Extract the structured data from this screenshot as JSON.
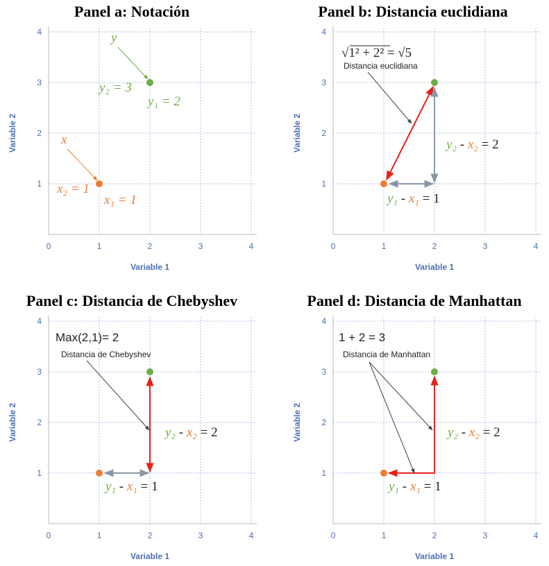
{
  "chart_data": [
    {
      "type": "scatter",
      "title": "Panel a: Notación",
      "xlabel": "Variable 1",
      "ylabel": "Variable 2",
      "xlim": [
        0,
        4
      ],
      "ylim": [
        0,
        4
      ],
      "xticks": [
        0,
        1,
        2,
        3,
        4
      ],
      "yticks": [
        1,
        2,
        3,
        4
      ],
      "grid": true,
      "series": [
        {
          "color": "#ed7d31",
          "x": [
            1
          ],
          "values": [
            1
          ]
        },
        {
          "color": "#70ad47",
          "x": [
            2
          ],
          "values": [
            3
          ]
        }
      ],
      "annotations": [
        {
          "parts": [
            {
              "text": "y",
              "color": "#70ad47"
            }
          ]
        },
        {
          "parts": [
            {
              "text": "y₂ = 3",
              "color": "#70ad47"
            }
          ]
        },
        {
          "parts": [
            {
              "text": "y₁ = 2",
              "color": "#70ad47"
            }
          ]
        },
        {
          "parts": [
            {
              "text": "x",
              "color": "#ed7d31"
            }
          ]
        },
        {
          "parts": [
            {
              "text": "x₂ = 1",
              "color": "#ed7d31"
            }
          ]
        },
        {
          "parts": [
            {
              "text": "x₁ = 1",
              "color": "#ed7d31"
            }
          ]
        }
      ]
    },
    {
      "type": "scatter",
      "title": "Panel b: Distancia euclidiana",
      "xlabel": "Variable 1",
      "ylabel": "Variable 2",
      "xlim": [
        0,
        4
      ],
      "ylim": [
        0,
        4
      ],
      "xticks": [
        0,
        1,
        2,
        3,
        4
      ],
      "yticks": [
        1,
        2,
        3,
        4
      ],
      "grid": true,
      "distance": "euclidean",
      "series": [
        {
          "color": "#ed7d31",
          "x": [
            1
          ],
          "values": [
            1
          ]
        },
        {
          "color": "#70ad47",
          "x": [
            2
          ],
          "values": [
            3
          ]
        }
      ],
      "annotations": [
        {
          "parts": [
            {
              "text": "√1² + 2² = √5",
              "color": "#222222"
            }
          ]
        },
        {
          "parts": [
            {
              "text": "Distancia euclidiana",
              "color": "#222222"
            }
          ]
        },
        {
          "parts": [
            {
              "text": "y₂",
              "color": "#70ad47"
            },
            {
              "text": " - ",
              "color": "#222222"
            },
            {
              "text": "x₂",
              "color": "#ed7d31"
            },
            {
              "text": " = 2",
              "color": "#222222"
            }
          ]
        },
        {
          "parts": [
            {
              "text": "y₁",
              "color": "#70ad47"
            },
            {
              "text": " - ",
              "color": "#222222"
            },
            {
              "text": "x₁",
              "color": "#ed7d31"
            },
            {
              "text": " = 1",
              "color": "#222222"
            }
          ]
        }
      ]
    },
    {
      "type": "scatter",
      "title": "Panel c: Distancia de Chebyshev",
      "xlabel": "Variable 1",
      "ylabel": "Variable 2",
      "xlim": [
        0,
        4
      ],
      "ylim": [
        0,
        4
      ],
      "xticks": [
        0,
        1,
        2,
        3,
        4
      ],
      "yticks": [
        1,
        2,
        3,
        4
      ],
      "grid": true,
      "distance": "chebyshev",
      "series": [
        {
          "color": "#ed7d31",
          "x": [
            1
          ],
          "values": [
            1
          ]
        },
        {
          "color": "#70ad47",
          "x": [
            2
          ],
          "values": [
            3
          ]
        }
      ],
      "annotations": [
        {
          "parts": [
            {
              "text": "Max(2,1)= 2",
              "color": "#222222"
            }
          ]
        },
        {
          "parts": [
            {
              "text": "Distancia de Chebyshev",
              "color": "#222222"
            }
          ]
        },
        {
          "parts": [
            {
              "text": "y₂",
              "color": "#70ad47"
            },
            {
              "text": " - ",
              "color": "#222222"
            },
            {
              "text": "x₂",
              "color": "#ed7d31"
            },
            {
              "text": " = 2",
              "color": "#222222"
            }
          ]
        },
        {
          "parts": [
            {
              "text": "y₁",
              "color": "#70ad47"
            },
            {
              "text": " - ",
              "color": "#222222"
            },
            {
              "text": "x₁",
              "color": "#ed7d31"
            },
            {
              "text": " = 1",
              "color": "#222222"
            }
          ]
        }
      ]
    },
    {
      "type": "scatter",
      "title": "Panel d: Distancia de Manhattan",
      "xlabel": "Variable 1",
      "ylabel": "Variable 2",
      "xlim": [
        0,
        4
      ],
      "ylim": [
        0,
        4
      ],
      "xticks": [
        0,
        1,
        2,
        3,
        4
      ],
      "yticks": [
        1,
        2,
        3,
        4
      ],
      "grid": true,
      "distance": "manhattan",
      "series": [
        {
          "color": "#ed7d31",
          "x": [
            1
          ],
          "values": [
            1
          ]
        },
        {
          "color": "#70ad47",
          "x": [
            2
          ],
          "values": [
            3
          ]
        }
      ],
      "annotations": [
        {
          "parts": [
            {
              "text": "1 + 2 = 3",
              "color": "#222222"
            }
          ]
        },
        {
          "parts": [
            {
              "text": "Distancia de Manhattan",
              "color": "#222222"
            }
          ]
        },
        {
          "parts": [
            {
              "text": "y₂",
              "color": "#70ad47"
            },
            {
              "text": " - ",
              "color": "#222222"
            },
            {
              "text": "x₂",
              "color": "#ed7d31"
            },
            {
              "text": " = 2",
              "color": "#222222"
            }
          ]
        },
        {
          "parts": [
            {
              "text": "y₁",
              "color": "#70ad47"
            },
            {
              "text": " - ",
              "color": "#222222"
            },
            {
              "text": "x₁",
              "color": "#ed7d31"
            },
            {
              "text": " = 1",
              "color": "#222222"
            }
          ]
        }
      ]
    }
  ]
}
